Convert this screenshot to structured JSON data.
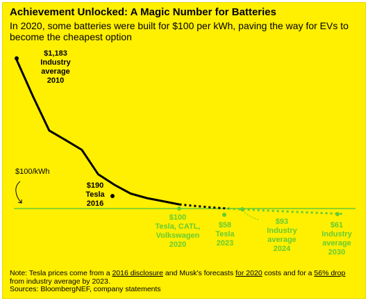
{
  "title": "Achievement Unlocked: A Magic Number for Batteries",
  "subtitle": "In 2020, some batteries were built for $100 per kWh, paving the way for EVs to become the cheapest option",
  "reference_label": "$100/kWh",
  "note": {
    "prefix": "Note: Tesla prices come from a ",
    "link1": "2016 disclosure",
    "mid1": " and Musk's forecasts ",
    "link2": "for 2020",
    "mid2": " costs and for a ",
    "link3": "56% drop",
    "suffix": " from industry average by 2023.",
    "sources": "Sources: BloombergNEF, company statements"
  },
  "colors": {
    "background": "#ffef00",
    "line": "#000000",
    "green": "#66cc33"
  },
  "chart_data": {
    "type": "line",
    "title": "Achievement Unlocked: A Magic Number for Batteries",
    "reference_line": {
      "value": 100,
      "label": "$100/kWh"
    },
    "series": [
      {
        "values": [
          [
            2010,
            1183
          ],
          [
            2011,
            917
          ],
          [
            2012,
            668
          ],
          [
            2013,
            599
          ],
          [
            2014,
            528
          ],
          [
            2015,
            350
          ],
          [
            2016,
            273
          ],
          [
            2017,
            209
          ],
          [
            2018,
            176
          ],
          [
            2019,
            153
          ],
          [
            2020,
            130
          ],
          [
            2021,
            118
          ],
          [
            2022,
            108
          ],
          [
            2023,
            100
          ]
        ]
      },
      {
        "values": [
          [
            2023,
            100
          ],
          [
            2024,
            93
          ],
          [
            2027,
            76
          ],
          [
            2030,
            61
          ]
        ]
      }
    ],
    "annotations": [
      {
        "x": 2010,
        "y": 1183,
        "lines": [
          "$1,183",
          "Industry",
          "average",
          "2010"
        ],
        "color": "#000000",
        "marker": true
      },
      {
        "x": 2016,
        "y": 190,
        "lines": [
          "$190",
          "Tesla",
          "2016"
        ],
        "color": "#000000",
        "marker": true
      },
      {
        "x": 2020,
        "y": 100,
        "lines": [
          "$100",
          "Tesla, CATL,",
          "Volkswagen",
          "2020"
        ],
        "color": "#66cc33",
        "marker": true
      },
      {
        "x": 2023,
        "y": 58,
        "lines": [
          "$58",
          "Tesla",
          "2023"
        ],
        "color": "#66cc33",
        "marker": true
      },
      {
        "x": 2024,
        "y": 93,
        "lines": [
          "$93",
          "Industry",
          "average",
          "2024"
        ],
        "color": "#66cc33",
        "marker": true
      },
      {
        "x": 2030,
        "y": 61,
        "lines": [
          "$61",
          "Industry",
          "average",
          "2030"
        ],
        "color": "#66cc33",
        "marker": true
      }
    ]
  }
}
